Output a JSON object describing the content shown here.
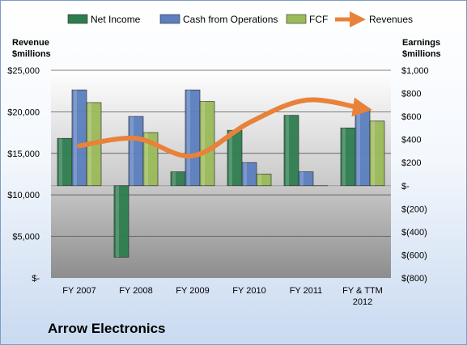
{
  "chart_data": {
    "type": "bar",
    "title": "Arrow Electronics",
    "categories": [
      "FY 2007",
      "FY 2008",
      "FY 2009",
      "FY 2010",
      "FY 2011",
      "FY & TTM 2012"
    ],
    "categories_display": [
      [
        "FY 2007"
      ],
      [
        "FY 2008"
      ],
      [
        "FY 2009"
      ],
      [
        "FY 2010"
      ],
      [
        "FY 2011"
      ],
      [
        "FY & TTM",
        "2012"
      ]
    ],
    "left_axis": {
      "title_lines": [
        "Revenue",
        "$millions"
      ],
      "ylim": [
        0,
        25000
      ],
      "ticks": [
        0,
        5000,
        10000,
        15000,
        20000,
        25000
      ],
      "tick_labels": [
        "$-",
        "$5,000",
        "$10,000",
        "$15,000",
        "$20,000",
        "$25,000"
      ]
    },
    "right_axis": {
      "title_lines": [
        "Earnings",
        "$millions"
      ],
      "ylim": [
        -800,
        1000
      ],
      "ticks": [
        -800,
        -600,
        -400,
        -200,
        0,
        200,
        400,
        600,
        800,
        1000
      ],
      "tick_labels": [
        "$(800)",
        "$(600)",
        "$(400)",
        "$(200)",
        "$-",
        "$200",
        "$400",
        "$600",
        "$800",
        "$1,000"
      ]
    },
    "bar_series": [
      {
        "name": "Net Income",
        "axis": "right",
        "color": "#2e7d4f",
        "values": [
          410,
          -620,
          120,
          480,
          610,
          500
        ]
      },
      {
        "name": "Cash from Operations",
        "axis": "right",
        "color": "#5b7fbf",
        "values": [
          830,
          600,
          830,
          200,
          120,
          670
        ]
      },
      {
        "name": "FCF",
        "axis": "right",
        "color": "#9bbb59",
        "values": [
          720,
          460,
          730,
          100,
          0,
          560
        ]
      }
    ],
    "line_series": {
      "name": "Revenues",
      "axis": "left",
      "color": "#e8823a",
      "values": [
        15900,
        16800,
        14700,
        18700,
        21400,
        20400
      ]
    },
    "grid": true,
    "legend_position": "top"
  },
  "company_label": "Arrow Electronics"
}
